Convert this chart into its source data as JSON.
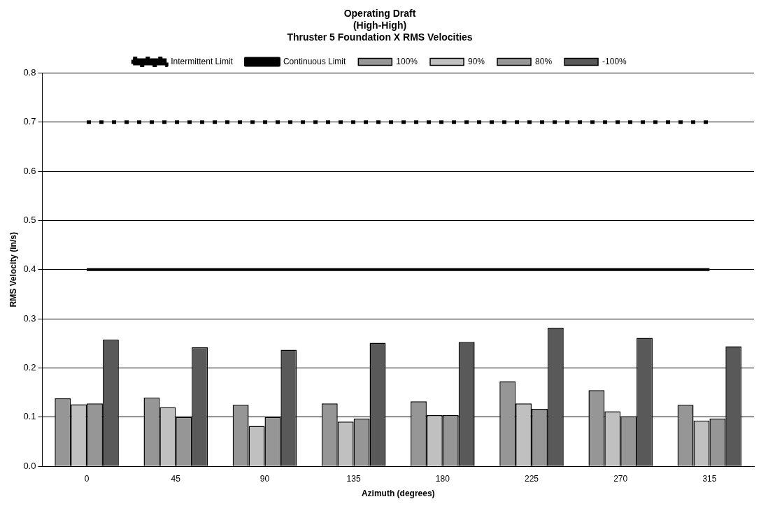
{
  "chart_data": {
    "type": "bar",
    "title": "Operating Draft\n(High-High)\nThruster 5 Foundation X RMS Velocities",
    "xlabel": "Azimuth (degrees)",
    "ylabel": "RMS Velocity (in/s)",
    "categories": [
      "0",
      "45",
      "90",
      "135",
      "180",
      "225",
      "270",
      "315"
    ],
    "series": [
      {
        "name": "100%",
        "color": "#969696",
        "values": [
          0.138,
          0.14,
          0.125,
          0.128,
          0.132,
          0.173,
          0.155,
          0.125
        ]
      },
      {
        "name": "90%",
        "color": "#c0c0c0",
        "values": [
          0.126,
          0.12,
          0.082,
          0.091,
          0.104,
          0.128,
          0.112,
          0.093
        ]
      },
      {
        "name": "80%",
        "color": "#969696",
        "values": [
          0.128,
          0.1,
          0.1,
          0.097,
          0.104,
          0.117,
          0.102,
          0.097
        ]
      },
      {
        "name": "-100%",
        "color": "#595959",
        "values": [
          0.258,
          0.242,
          0.237,
          0.251,
          0.253,
          0.282,
          0.261,
          0.244
        ]
      },
      {
        "name": "Intermittent Limit",
        "type": "line",
        "color": "#000000",
        "line_style": "dashed",
        "marker": "none",
        "values": [
          0.7,
          0.7,
          0.7,
          0.7,
          0.7,
          0.7,
          0.7,
          0.7
        ]
      },
      {
        "name": "Continuous Limit",
        "type": "line",
        "color": "#000000",
        "line_style": "solid",
        "marker": "none",
        "values": [
          0.4,
          0.4,
          0.4,
          0.4,
          0.4,
          0.4,
          0.4,
          0.4
        ]
      }
    ],
    "ylim": [
      0,
      0.8
    ],
    "yticks": [
      {
        "value": 0,
        "label": "0.0"
      },
      0.1,
      0.2,
      0.3,
      0.4,
      0.5,
      0.6,
      0.7,
      0.8
    ],
    "grid": "y",
    "legend": "top"
  }
}
